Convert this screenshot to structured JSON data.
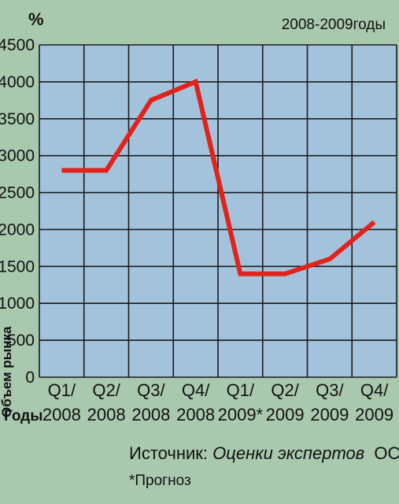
{
  "chart_data": {
    "type": "line",
    "unit_label": "%",
    "period_label": "2008-2009годы",
    "ylabel": "Объем рынка",
    "xlabel": "Годы",
    "ylim": [
      0,
      4500
    ],
    "y_ticks": [
      "0",
      "500",
      "1000",
      "1500",
      "2000",
      "2500",
      "3000",
      "3500",
      "4000",
      "4500"
    ],
    "categories": [
      {
        "quarter": "Q1/",
        "year": "2008"
      },
      {
        "quarter": "Q2/",
        "year": "2008"
      },
      {
        "quarter": "Q3/",
        "year": "2008"
      },
      {
        "quarter": "Q4/",
        "year": "2008"
      },
      {
        "quarter": "Q1/",
        "year": "2009*"
      },
      {
        "quarter": "Q2/",
        "year": "2009"
      },
      {
        "quarter": "Q3/",
        "year": "2009"
      },
      {
        "quarter": "Q4/",
        "year": "2009"
      }
    ],
    "values": [
      2800,
      2800,
      3750,
      4000,
      1400,
      1400,
      1600,
      2100
    ],
    "grid": true,
    "line_color": "#e0241b",
    "plot_background": "#a3c3dd"
  },
  "source": {
    "prefix": "Источник:",
    "text": "Оценки экспертов",
    "org": "OCS"
  },
  "footnote": "*Прогноз"
}
